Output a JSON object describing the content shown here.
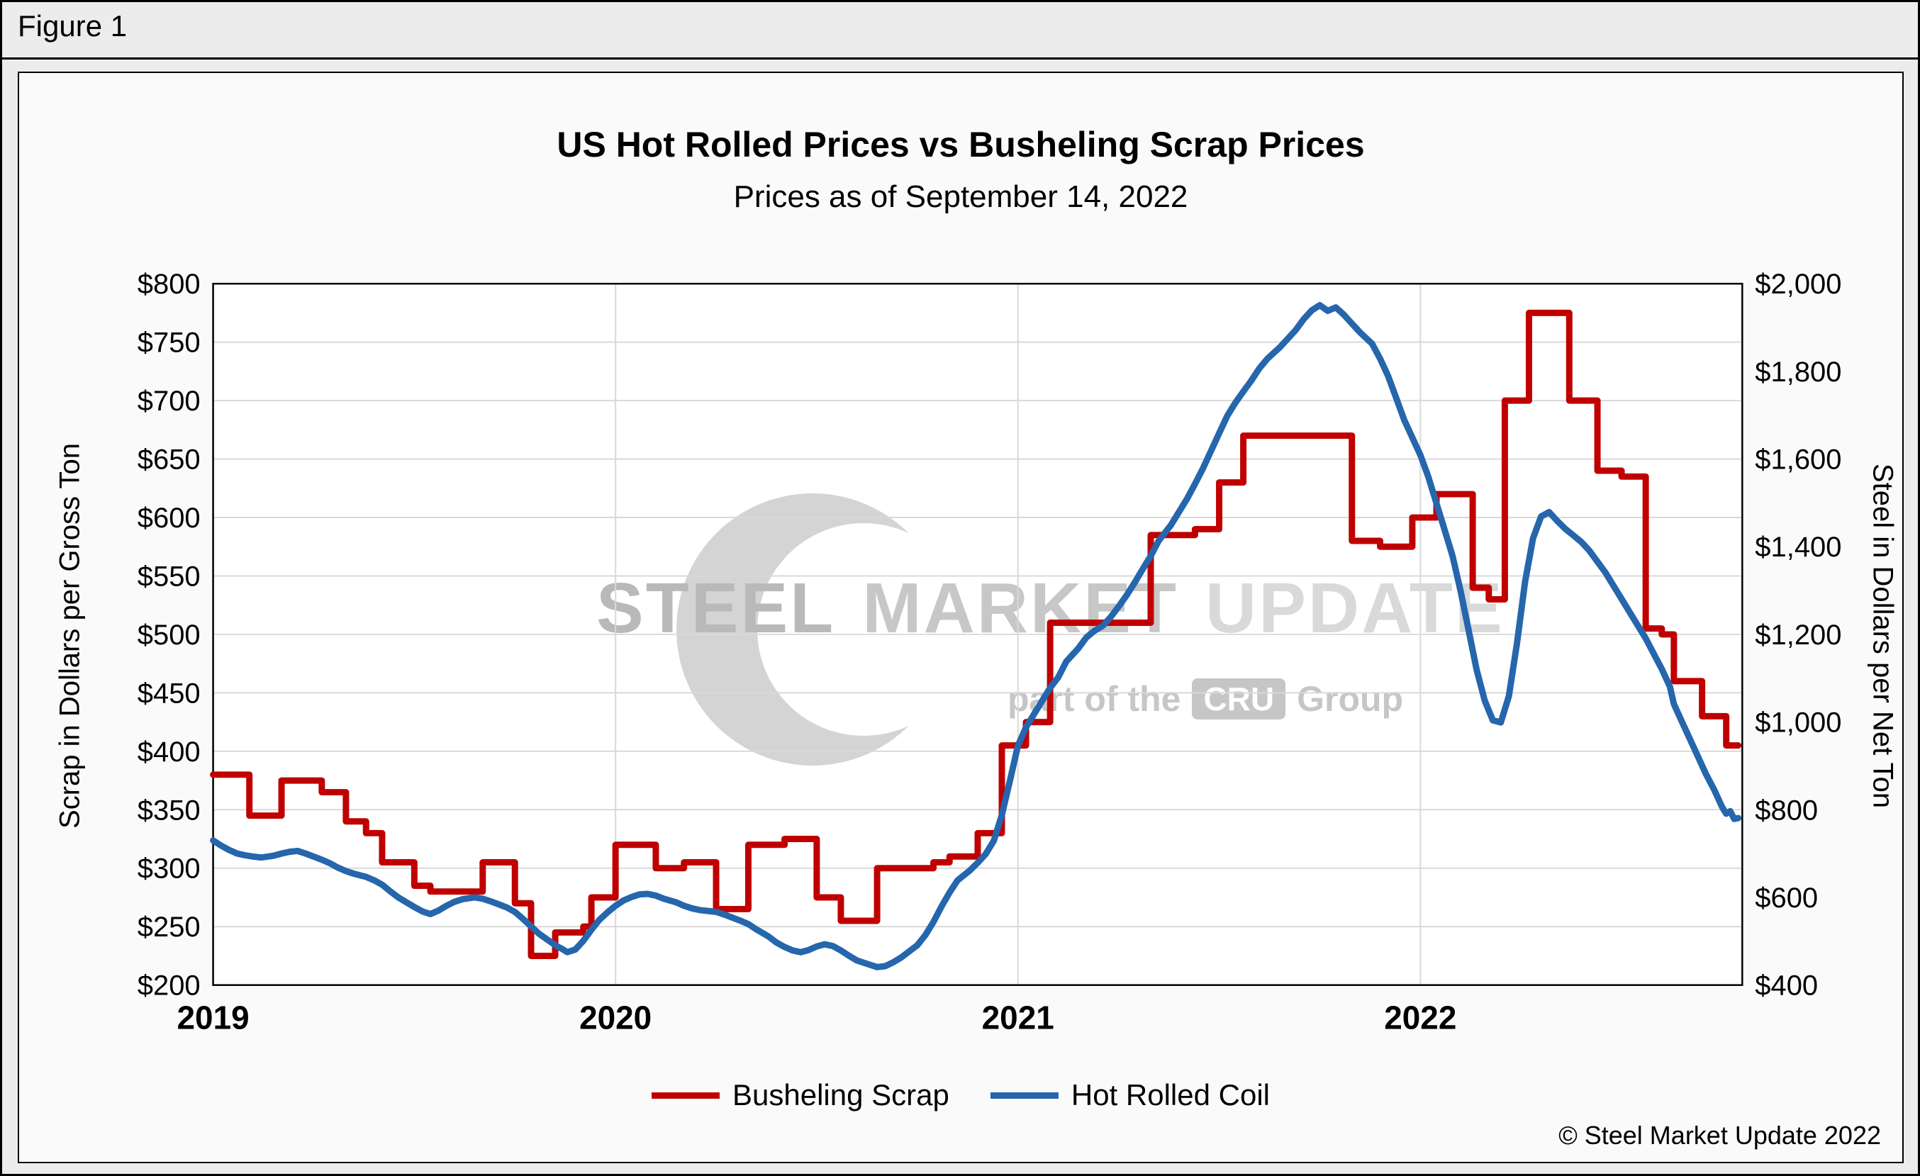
{
  "figure_label": "Figure 1",
  "chart_data": {
    "type": "line",
    "title": "US Hot Rolled Prices vs Busheling Scrap Prices",
    "subtitle": "Prices as of September 14, 2022",
    "grid": true,
    "legend_position": "bottom",
    "left_axis": {
      "label": "Scrap in Dollars per Gross Ton",
      "min": 200,
      "max": 800,
      "tick_step": 50,
      "tick_prefix": "$"
    },
    "right_axis": {
      "label": "Steel in Dollars per Net Ton",
      "min": 400,
      "max": 2000,
      "tick_step": 200,
      "tick_prefix": "$"
    },
    "x_axis": {
      "min": 2019,
      "max": 2022.8,
      "tick_values": [
        2019,
        2020,
        2021,
        2022
      ],
      "tick_labels": [
        "2019",
        "2020",
        "2021",
        "2022"
      ]
    },
    "series": [
      {
        "name": "Busheling Scrap",
        "axis": "left",
        "color": "#C00000",
        "style": "step",
        "points": [
          [
            2019.0,
            380
          ],
          [
            2019.09,
            345
          ],
          [
            2019.17,
            375
          ],
          [
            2019.27,
            365
          ],
          [
            2019.33,
            340
          ],
          [
            2019.38,
            330
          ],
          [
            2019.42,
            305
          ],
          [
            2019.5,
            285
          ],
          [
            2019.54,
            280
          ],
          [
            2019.67,
            305
          ],
          [
            2019.75,
            270
          ],
          [
            2019.79,
            225
          ],
          [
            2019.85,
            245
          ],
          [
            2019.92,
            250
          ],
          [
            2019.94,
            275
          ],
          [
            2020.0,
            320
          ],
          [
            2020.1,
            300
          ],
          [
            2020.17,
            305
          ],
          [
            2020.25,
            265
          ],
          [
            2020.33,
            320
          ],
          [
            2020.42,
            325
          ],
          [
            2020.5,
            275
          ],
          [
            2020.56,
            255
          ],
          [
            2020.65,
            300
          ],
          [
            2020.79,
            305
          ],
          [
            2020.83,
            310
          ],
          [
            2020.9,
            330
          ],
          [
            2020.96,
            405
          ],
          [
            2021.02,
            425
          ],
          [
            2021.08,
            510
          ],
          [
            2021.33,
            585
          ],
          [
            2021.44,
            590
          ],
          [
            2021.5,
            630
          ],
          [
            2021.56,
            670
          ],
          [
            2021.83,
            580
          ],
          [
            2021.9,
            575
          ],
          [
            2021.98,
            600
          ],
          [
            2022.04,
            620
          ],
          [
            2022.13,
            540
          ],
          [
            2022.17,
            530
          ],
          [
            2022.21,
            700
          ],
          [
            2022.27,
            775
          ],
          [
            2022.37,
            700
          ],
          [
            2022.44,
            640
          ],
          [
            2022.5,
            635
          ],
          [
            2022.56,
            505
          ],
          [
            2022.6,
            500
          ],
          [
            2022.63,
            460
          ],
          [
            2022.7,
            430
          ],
          [
            2022.76,
            405
          ],
          [
            2022.79,
            405
          ]
        ]
      },
      {
        "name": "Hot Rolled Coil",
        "axis": "right",
        "color": "#2566AC",
        "style": "line",
        "points": [
          [
            2019.0,
            730
          ],
          [
            2019.02,
            718
          ],
          [
            2019.04,
            708
          ],
          [
            2019.06,
            700
          ],
          [
            2019.08,
            696
          ],
          [
            2019.1,
            693
          ],
          [
            2019.12,
            691
          ],
          [
            2019.15,
            695
          ],
          [
            2019.17,
            700
          ],
          [
            2019.19,
            704
          ],
          [
            2019.21,
            706
          ],
          [
            2019.23,
            700
          ],
          [
            2019.25,
            693
          ],
          [
            2019.27,
            686
          ],
          [
            2019.29,
            678
          ],
          [
            2019.31,
            668
          ],
          [
            2019.33,
            660
          ],
          [
            2019.35,
            654
          ],
          [
            2019.38,
            647
          ],
          [
            2019.4,
            639
          ],
          [
            2019.42,
            629
          ],
          [
            2019.44,
            614
          ],
          [
            2019.46,
            600
          ],
          [
            2019.48,
            589
          ],
          [
            2019.5,
            578
          ],
          [
            2019.52,
            568
          ],
          [
            2019.54,
            562
          ],
          [
            2019.56,
            570
          ],
          [
            2019.58,
            581
          ],
          [
            2019.6,
            590
          ],
          [
            2019.62,
            596
          ],
          [
            2019.65,
            600
          ],
          [
            2019.67,
            597
          ],
          [
            2019.69,
            591
          ],
          [
            2019.71,
            584
          ],
          [
            2019.73,
            577
          ],
          [
            2019.75,
            567
          ],
          [
            2019.77,
            551
          ],
          [
            2019.79,
            534
          ],
          [
            2019.81,
            517
          ],
          [
            2019.83,
            504
          ],
          [
            2019.85,
            491
          ],
          [
            2019.87,
            481
          ],
          [
            2019.88,
            475
          ],
          [
            2019.9,
            481
          ],
          [
            2019.92,
            501
          ],
          [
            2019.94,
            526
          ],
          [
            2019.96,
            549
          ],
          [
            2019.98,
            566
          ],
          [
            2020.0,
            581
          ],
          [
            2020.02,
            593
          ],
          [
            2020.04,
            601
          ],
          [
            2020.06,
            607
          ],
          [
            2020.08,
            608
          ],
          [
            2020.1,
            604
          ],
          [
            2020.12,
            597
          ],
          [
            2020.15,
            589
          ],
          [
            2020.17,
            581
          ],
          [
            2020.19,
            575
          ],
          [
            2020.21,
            571
          ],
          [
            2020.23,
            569
          ],
          [
            2020.25,
            567
          ],
          [
            2020.27,
            561
          ],
          [
            2020.29,
            554
          ],
          [
            2020.31,
            547
          ],
          [
            2020.33,
            539
          ],
          [
            2020.35,
            527
          ],
          [
            2020.38,
            511
          ],
          [
            2020.4,
            497
          ],
          [
            2020.42,
            487
          ],
          [
            2020.44,
            479
          ],
          [
            2020.46,
            475
          ],
          [
            2020.48,
            480
          ],
          [
            2020.5,
            488
          ],
          [
            2020.52,
            493
          ],
          [
            2020.54,
            489
          ],
          [
            2020.56,
            479
          ],
          [
            2020.58,
            467
          ],
          [
            2020.6,
            456
          ],
          [
            2020.63,
            447
          ],
          [
            2020.65,
            441
          ],
          [
            2020.67,
            443
          ],
          [
            2020.69,
            452
          ],
          [
            2020.71,
            463
          ],
          [
            2020.73,
            477
          ],
          [
            2020.75,
            491
          ],
          [
            2020.77,
            514
          ],
          [
            2020.79,
            544
          ],
          [
            2020.81,
            579
          ],
          [
            2020.83,
            611
          ],
          [
            2020.85,
            639
          ],
          [
            2020.88,
            661
          ],
          [
            2020.9,
            679
          ],
          [
            2020.92,
            699
          ],
          [
            2020.94,
            729
          ],
          [
            2020.96,
            788
          ],
          [
            2020.98,
            866
          ],
          [
            2021.0,
            946
          ],
          [
            2021.02,
            988
          ],
          [
            2021.04,
            1018
          ],
          [
            2021.06,
            1048
          ],
          [
            2021.08,
            1078
          ],
          [
            2021.1,
            1102
          ],
          [
            2021.12,
            1138
          ],
          [
            2021.15,
            1168
          ],
          [
            2021.17,
            1193
          ],
          [
            2021.19,
            1208
          ],
          [
            2021.21,
            1219
          ],
          [
            2021.23,
            1239
          ],
          [
            2021.25,
            1263
          ],
          [
            2021.27,
            1289
          ],
          [
            2021.29,
            1318
          ],
          [
            2021.31,
            1349
          ],
          [
            2021.33,
            1379
          ],
          [
            2021.35,
            1414
          ],
          [
            2021.38,
            1449
          ],
          [
            2021.4,
            1479
          ],
          [
            2021.42,
            1509
          ],
          [
            2021.44,
            1543
          ],
          [
            2021.46,
            1579
          ],
          [
            2021.48,
            1619
          ],
          [
            2021.5,
            1659
          ],
          [
            2021.52,
            1698
          ],
          [
            2021.54,
            1728
          ],
          [
            2021.56,
            1754
          ],
          [
            2021.58,
            1779
          ],
          [
            2021.6,
            1807
          ],
          [
            2021.62,
            1829
          ],
          [
            2021.65,
            1854
          ],
          [
            2021.67,
            1874
          ],
          [
            2021.69,
            1894
          ],
          [
            2021.71,
            1919
          ],
          [
            2021.73,
            1939
          ],
          [
            2021.75,
            1951
          ],
          [
            2021.77,
            1938
          ],
          [
            2021.79,
            1946
          ],
          [
            2021.81,
            1929
          ],
          [
            2021.83,
            1909
          ],
          [
            2021.85,
            1889
          ],
          [
            2021.88,
            1863
          ],
          [
            2021.9,
            1829
          ],
          [
            2021.92,
            1789
          ],
          [
            2021.94,
            1739
          ],
          [
            2021.96,
            1689
          ],
          [
            2021.98,
            1649
          ],
          [
            2022.0,
            1609
          ],
          [
            2022.02,
            1559
          ],
          [
            2022.04,
            1499
          ],
          [
            2022.06,
            1439
          ],
          [
            2022.08,
            1379
          ],
          [
            2022.1,
            1299
          ],
          [
            2022.12,
            1209
          ],
          [
            2022.14,
            1119
          ],
          [
            2022.16,
            1049
          ],
          [
            2022.18,
            1004
          ],
          [
            2022.2,
            999
          ],
          [
            2022.22,
            1059
          ],
          [
            2022.24,
            1179
          ],
          [
            2022.26,
            1319
          ],
          [
            2022.28,
            1419
          ],
          [
            2022.3,
            1469
          ],
          [
            2022.32,
            1479
          ],
          [
            2022.34,
            1459
          ],
          [
            2022.36,
            1441
          ],
          [
            2022.38,
            1426
          ],
          [
            2022.4,
            1411
          ],
          [
            2022.42,
            1391
          ],
          [
            2022.44,
            1366
          ],
          [
            2022.46,
            1341
          ],
          [
            2022.48,
            1311
          ],
          [
            2022.5,
            1281
          ],
          [
            2022.52,
            1251
          ],
          [
            2022.54,
            1221
          ],
          [
            2022.56,
            1191
          ],
          [
            2022.58,
            1156
          ],
          [
            2022.6,
            1121
          ],
          [
            2022.62,
            1081
          ],
          [
            2022.63,
            1041
          ],
          [
            2022.65,
            1001
          ],
          [
            2022.67,
            961
          ],
          [
            2022.69,
            921
          ],
          [
            2022.71,
            881
          ],
          [
            2022.73,
            846
          ],
          [
            2022.75,
            806
          ],
          [
            2022.76,
            791
          ],
          [
            2022.77,
            797
          ],
          [
            2022.78,
            779
          ],
          [
            2022.79,
            781
          ]
        ]
      }
    ]
  },
  "watermark": {
    "word1": "STEEL",
    "word2": "MARKET",
    "word3": "UPDATE",
    "part_prefix": "part of the",
    "cru": "CRU",
    "part_suffix": "Group"
  },
  "footer": {
    "copyright": "© Steel Market Update 2022"
  }
}
